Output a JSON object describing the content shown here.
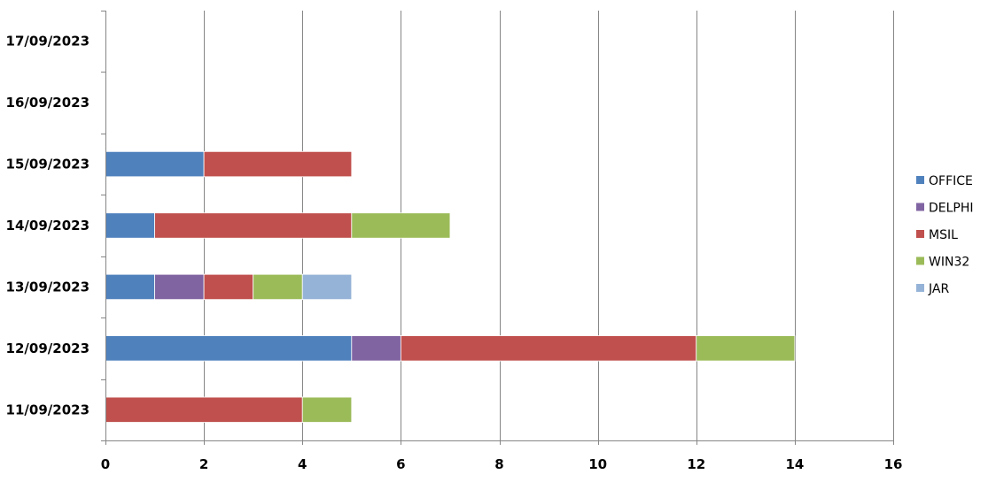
{
  "chart_data": {
    "type": "bar",
    "orientation": "horizontal",
    "stacked": true,
    "title": "",
    "xlabel": "",
    "ylabel": "",
    "categories": [
      "11/09/2023",
      "12/09/2023",
      "13/09/2023",
      "14/09/2023",
      "15/09/2023",
      "16/09/2023",
      "17/09/2023"
    ],
    "series": [
      {
        "name": "OFFICE",
        "color": "#4F81BD",
        "values": [
          0,
          5,
          1,
          1,
          2,
          0,
          0
        ]
      },
      {
        "name": "DELPHI",
        "color": "#8064A2",
        "values": [
          0,
          1,
          1,
          0,
          0,
          0,
          0
        ]
      },
      {
        "name": "MSIL",
        "color": "#C0504D",
        "values": [
          4,
          6,
          1,
          4,
          3,
          0,
          0
        ]
      },
      {
        "name": "WIN32",
        "color": "#9BBB59",
        "values": [
          1,
          2,
          1,
          2,
          0,
          0,
          0
        ]
      },
      {
        "name": "JAR",
        "color": "#95B3D7",
        "values": [
          0,
          0,
          1,
          0,
          0,
          0,
          0
        ]
      }
    ],
    "xlim": [
      0,
      16
    ],
    "xticks": [
      0,
      2,
      4,
      6,
      8,
      10,
      12,
      14,
      16
    ],
    "grid": true,
    "legend_position": "right"
  }
}
